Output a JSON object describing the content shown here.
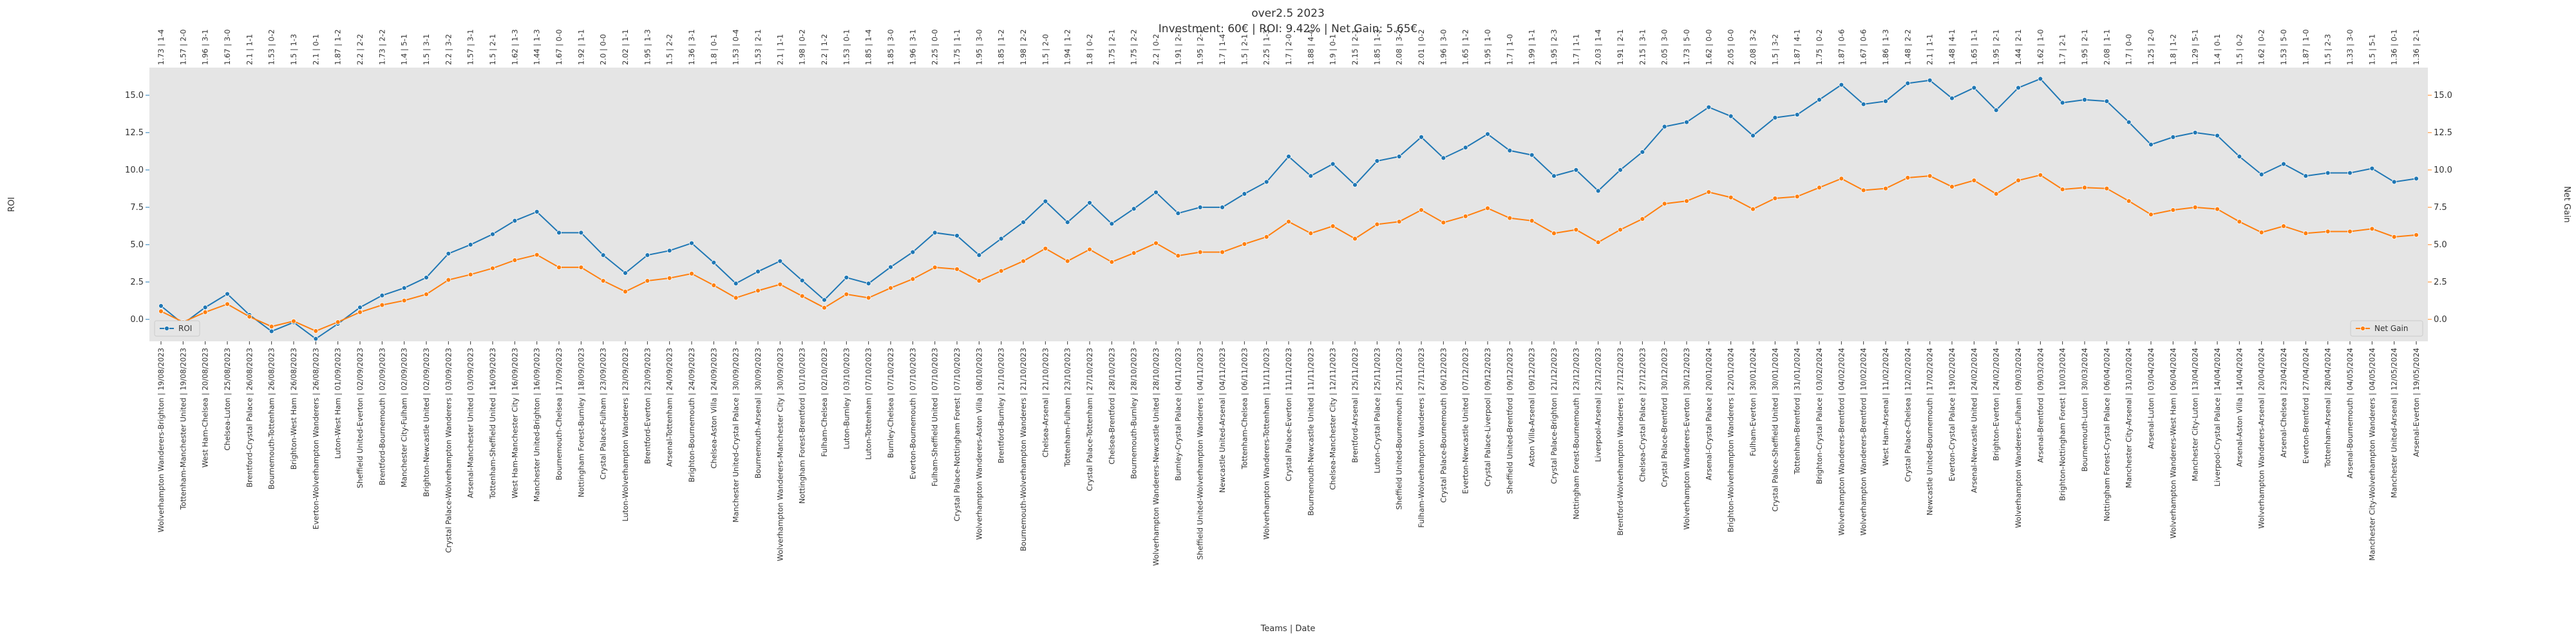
{
  "chart_data": {
    "type": "line",
    "title": "over2.5 2023",
    "subtitle": "Investment: 60€ | ROI: 9.42% | Net Gain: 5.65€",
    "xlabel": "Teams | Date",
    "ylabel": "ROI",
    "y2label": "Net Gain",
    "grid": false,
    "background": "#e5e5e5",
    "ylim": [
      -1.47,
      16.85
    ],
    "y2lim": [
      -1.47,
      16.85
    ],
    "yticks": [
      {
        "value": 0,
        "label": "0.0"
      },
      2.5,
      {
        "value": 5,
        "label": "5.0"
      },
      7.5,
      {
        "value": 10,
        "label": "10.0"
      },
      12.5,
      {
        "value": 15,
        "label": "15.0"
      }
    ],
    "y2ticks": [
      {
        "value": 0,
        "label": "0.0"
      },
      2.5,
      {
        "value": 5,
        "label": "5.0"
      },
      7.5,
      {
        "value": 10,
        "label": "10.0"
      },
      12.5,
      {
        "value": 15,
        "label": "15.0"
      }
    ],
    "categories": [
      "Wolverhampton Wanderers-Brighton | 19/08/2023",
      "Tottenham-Manchester United | 19/08/2023",
      "West Ham-Chelsea | 20/08/2023",
      "Chelsea-Luton | 25/08/2023",
      "Brentford-Crystal Palace | 26/08/2023",
      "Bournemouth-Tottenham | 26/08/2023",
      "Brighton-West Ham | 26/08/2023",
      "Everton-Wolverhampton Wanderers | 26/08/2023",
      "Luton-West Ham | 01/09/2023",
      "Sheffield United-Everton | 02/09/2023",
      "Brentford-Bournemouth | 02/09/2023",
      "Manchester City-Fulham | 02/09/2023",
      "Brighton-Newcastle United | 02/09/2023",
      "Crystal Palace-Wolverhampton Wanderers | 03/09/2023",
      "Arsenal-Manchester United | 03/09/2023",
      "Tottenham-Sheffield United | 16/09/2023",
      "West Ham-Manchester City | 16/09/2023",
      "Manchester United-Brighton | 16/09/2023",
      "Bournemouth-Chelsea | 17/09/2023",
      "Nottingham Forest-Burnley | 18/09/2023",
      "Crystal Palace-Fulham | 23/09/2023",
      "Luton-Wolverhampton Wanderers | 23/09/2023",
      "Brentford-Everton | 23/09/2023",
      "Arsenal-Tottenham | 24/09/2023",
      "Brighton-Bournemouth | 24/09/2023",
      "Chelsea-Aston Villa | 24/09/2023",
      "Manchester United-Crystal Palace | 30/09/2023",
      "Bournemouth-Arsenal | 30/09/2023",
      "Wolverhampton Wanderers-Manchester City | 30/09/2023",
      "Nottingham Forest-Brentford | 01/10/2023",
      "Fulham-Chelsea | 02/10/2023",
      "Luton-Burnley | 03/10/2023",
      "Luton-Tottenham | 07/10/2023",
      "Burnley-Chelsea | 07/10/2023",
      "Everton-Bournemouth | 07/10/2023",
      "Fulham-Sheffield United | 07/10/2023",
      "Crystal Palace-Nottingham Forest | 07/10/2023",
      "Wolverhampton Wanderers-Aston Villa | 08/10/2023",
      "Brentford-Burnley | 21/10/2023",
      "Bournemouth-Wolverhampton Wanderers | 21/10/2023",
      "Chelsea-Arsenal | 21/10/2023",
      "Tottenham-Fulham | 23/10/2023",
      "Crystal Palace-Tottenham | 27/10/2023",
      "Chelsea-Brentford | 28/10/2023",
      "Bournemouth-Burnley | 28/10/2023",
      "Wolverhampton Wanderers-Newcastle United | 28/10/2023",
      "Burnley-Crystal Palace | 04/11/2023",
      "Sheffield United-Wolverhampton Wanderers | 04/11/2023",
      "Newcastle United-Arsenal | 04/11/2023",
      "Tottenham-Chelsea | 06/11/2023",
      "Wolverhampton Wanderers-Tottenham | 11/11/2023",
      "Crystal Palace-Everton | 11/11/2023",
      "Bournemouth-Newcastle United | 11/11/2023",
      "Chelsea-Manchester City | 12/11/2023",
      "Brentford-Arsenal | 25/11/2023",
      "Luton-Crystal Palace | 25/11/2023",
      "Sheffield United-Bournemouth | 25/11/2023",
      "Fulham-Wolverhampton Wanderers | 27/11/2023",
      "Crystal Palace-Bournemouth | 06/12/2023",
      "Everton-Newcastle United | 07/12/2023",
      "Crystal Palace-Liverpool | 09/12/2023",
      "Sheffield United-Brentford | 09/12/2023",
      "Aston Villa-Arsenal | 09/12/2023",
      "Crystal Palace-Brighton | 21/12/2023",
      "Nottingham Forest-Bournemouth | 23/12/2023",
      "Liverpool-Arsenal | 23/12/2023",
      "Brentford-Wolverhampton Wanderers | 27/12/2023",
      "Chelsea-Crystal Palace | 27/12/2023",
      "Crystal Palace-Brentford | 30/12/2023",
      "Wolverhampton Wanderers-Everton | 30/12/2023",
      "Arsenal-Crystal Palace | 20/01/2024",
      "Brighton-Wolverhampton Wanderers | 22/01/2024",
      "Fulham-Everton | 30/01/2024",
      "Crystal Palace-Sheffield United | 30/01/2024",
      "Tottenham-Brentford | 31/01/2024",
      "Brighton-Crystal Palace | 03/02/2024",
      "Wolverhampton Wanderers-Brentford | 04/02/2024",
      "Wolverhampton Wanderers-Brentford | 10/02/2024",
      "West Ham-Arsenal | 11/02/2024",
      "Crystal Palace-Chelsea | 12/02/2024",
      "Newcastle United-Bournemouth | 17/02/2024",
      "Everton-Crystal Palace | 19/02/2024",
      "Arsenal-Newcastle United | 24/02/2024",
      "Brighton-Everton | 24/02/2024",
      "Wolverhampton Wanderers-Fulham | 09/03/2024",
      "Arsenal-Brentford | 09/03/2024",
      "Brighton-Nottingham Forest | 10/03/2024",
      "Bournemouth-Luton | 30/03/2024",
      "Nottingham Forest-Crystal Palace | 06/04/2024",
      "Manchester City-Arsenal | 31/03/2024",
      "Arsenal-Luton | 03/04/2024",
      "Wolverhampton Wanderers-West Ham | 06/04/2024",
      "Manchester City-Luton | 13/04/2024",
      "Liverpool-Crystal Palace | 14/04/2024",
      "Arsenal-Aston Villa | 14/04/2024",
      "Wolverhampton Wanderers-Arsenal | 20/04/2024",
      "Arsenal-Chelsea | 23/04/2024",
      "Everton-Brentford | 27/04/2024",
      "Tottenham-Arsenal | 28/04/2024",
      "Arsenal-Bournemouth | 04/05/2024",
      "Manchester City-Wolverhampton Wanderers | 04/05/2024",
      "Manchester United-Arsenal | 12/05/2024",
      "Arsenal-Everton | 19/05/2024"
    ],
    "top_labels": [
      "1.73 | 1-4",
      "1.57 | 2-0",
      "1.96 | 3-1",
      "1.67 | 3-0",
      "2.1 | 1-1",
      "1.53 | 0-2",
      "1.5 | 1-3",
      "2.1 | 0-1",
      "1.87 | 1-2",
      "2.2 | 2-2",
      "1.73 | 2-2",
      "1.4 | 5-1",
      "1.5 | 3-1",
      "2.2 | 3-2",
      "1.57 | 3-1",
      "1.5 | 2-1",
      "1.62 | 1-3",
      "1.44 | 1-3",
      "1.67 | 0-0",
      "1.92 | 1-1",
      "2.0 | 0-0",
      "2.02 | 1-1",
      "1.95 | 1-3",
      "1.5 | 2-2",
      "1.36 | 3-1",
      "1.8 | 0-1",
      "1.53 | 0-4",
      "1.53 | 2-1",
      "2.1 | 1-1",
      "1.98 | 0-2",
      "2.2 | 1-2",
      "1.53 | 0-1",
      "1.85 | 1-4",
      "1.85 | 3-0",
      "1.96 | 3-1",
      "2.25 | 0-0",
      "1.75 | 1-1",
      "1.95 | 3-0",
      "1.85 | 1-2",
      "1.98 | 2-2",
      "1.5 | 2-0",
      "1.94 | 1-2",
      "1.8 | 0-2",
      "1.75 | 2-1",
      "1.75 | 2-2",
      "2.2 | 0-2",
      "1.91 | 2-1",
      "1.95 | 2-1",
      "1.7 | 1-4",
      "1.5 | 2-1",
      "2.25 | 1-3",
      "1.7 | 2-0",
      "1.88 | 4-4",
      "1.9 | 0-1",
      "2.15 | 2-1",
      "1.85 | 1-3",
      "2.08 | 3-2",
      "2.01 | 0-2",
      "1.96 | 3-0",
      "1.65 | 1-2",
      "1.95 | 1-0",
      "1.7 | 1-0",
      "1.99 | 1-1",
      "1.95 | 2-3",
      "1.7 | 1-1",
      "2.03 | 1-4",
      "1.91 | 2-1",
      "2.15 | 3-1",
      "2.05 | 3-0",
      "1.73 | 5-0",
      "1.62 | 0-0",
      "2.05 | 0-0",
      "2.08 | 3-2",
      "1.5 | 3-2",
      "1.87 | 4-1",
      "1.75 | 0-2",
      "1.87 | 0-6",
      "1.67 | 0-6",
      "1.86 | 1-3",
      "1.48 | 2-2",
      "2.1 | 1-1",
      "1.48 | 4-1",
      "1.65 | 1-1",
      "1.95 | 2-1",
      "1.44 | 2-1",
      "1.62 | 1-0",
      "1.7 | 2-1",
      "1.95 | 2-1",
      "2.08 | 1-1",
      "1.7 | 0-0",
      "1.25 | 2-0",
      "1.8 | 1-2",
      "1.29 | 5-1",
      "1.4 | 0-1",
      "1.5 | 0-2",
      "1.62 | 0-2",
      "1.53 | 5-0",
      "1.87 | 1-0",
      "1.5 | 2-3",
      "1.33 | 3-0",
      "1.5 | 5-1",
      "1.36 | 0-1",
      "1.36 | 2-1"
    ],
    "series": [
      {
        "name": "ROI",
        "color": "#1f77b4",
        "axis": "y",
        "legend": "lower left",
        "values": [
          0.9,
          -0.3,
          0.8,
          1.7,
          0.3,
          -0.8,
          -0.2,
          -1.3,
          -0.3,
          0.8,
          1.6,
          2.1,
          2.8,
          4.4,
          5.0,
          5.7,
          6.6,
          7.2,
          5.8,
          5.8,
          4.3,
          3.1,
          4.3,
          4.6,
          5.1,
          3.8,
          2.4,
          3.2,
          3.9,
          2.6,
          1.3,
          2.8,
          2.4,
          3.5,
          4.5,
          5.8,
          5.6,
          4.3,
          5.4,
          6.5,
          7.9,
          6.5,
          7.8,
          6.4,
          7.4,
          8.5,
          7.1,
          7.5,
          7.5,
          8.4,
          9.2,
          10.9,
          9.6,
          10.4,
          9.0,
          10.6,
          10.9,
          12.2,
          10.8,
          11.5,
          12.4,
          11.3,
          11.0,
          9.6,
          10.0,
          8.6,
          10.0,
          11.2,
          12.9,
          13.2,
          14.2,
          13.6,
          12.3,
          13.5,
          13.7,
          14.7,
          15.7,
          14.4,
          14.6,
          15.8,
          16.0,
          14.8,
          15.5,
          14.0,
          15.5,
          16.1,
          14.5,
          14.7,
          14.6,
          13.2,
          11.7,
          12.2,
          12.5,
          12.3,
          10.9,
          9.7,
          10.4,
          9.6,
          9.8,
          9.8,
          10.1,
          9.2,
          9.42
        ]
      },
      {
        "name": "Net Gain",
        "color": "#ff7f0e",
        "axis": "y2",
        "legend": "lower right",
        "values": [
          0.54,
          -0.18,
          0.48,
          1.02,
          0.18,
          -0.48,
          -0.12,
          -0.78,
          -0.18,
          0.48,
          0.96,
          1.26,
          1.68,
          2.64,
          3.0,
          3.42,
          3.96,
          4.32,
          3.48,
          3.48,
          2.58,
          1.86,
          2.58,
          2.76,
          3.06,
          2.28,
          1.44,
          1.92,
          2.34,
          1.56,
          0.78,
          1.68,
          1.44,
          2.1,
          2.7,
          3.48,
          3.36,
          2.58,
          3.24,
          3.9,
          4.74,
          3.9,
          4.68,
          3.84,
          4.44,
          5.1,
          4.26,
          4.5,
          4.5,
          5.04,
          5.52,
          6.54,
          5.76,
          6.24,
          5.4,
          6.36,
          6.54,
          7.32,
          6.48,
          6.9,
          7.44,
          6.78,
          6.6,
          5.76,
          6.0,
          5.16,
          6.0,
          6.72,
          7.74,
          7.92,
          8.52,
          8.16,
          7.38,
          8.1,
          8.22,
          8.82,
          9.42,
          8.64,
          8.76,
          9.48,
          9.6,
          8.88,
          9.3,
          8.4,
          9.3,
          9.66,
          8.7,
          8.82,
          8.76,
          7.92,
          7.02,
          7.32,
          7.5,
          7.38,
          6.54,
          5.82,
          6.24,
          5.76,
          5.88,
          5.88,
          6.06,
          5.52,
          5.65
        ]
      }
    ]
  }
}
